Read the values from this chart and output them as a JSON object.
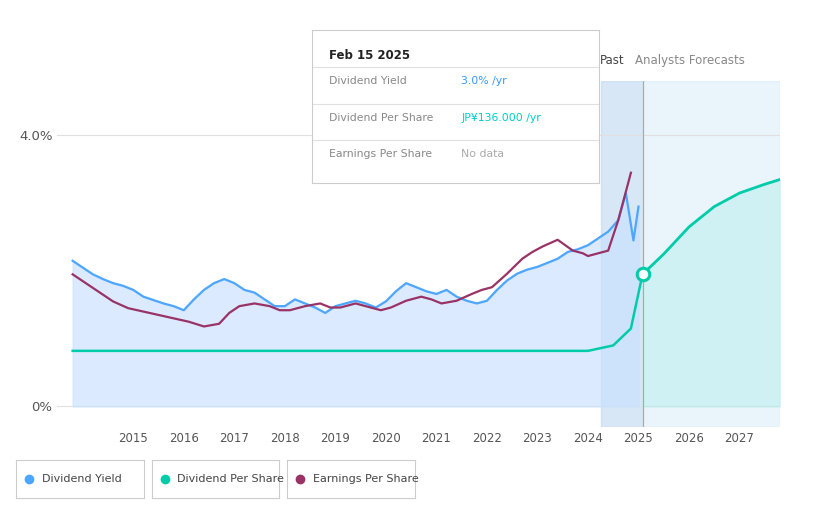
{
  "x_min": 2013.5,
  "x_max": 2027.8,
  "y_min": -0.3,
  "y_max": 4.8,
  "y_ticks": [
    0.0,
    4.0
  ],
  "y_tick_labels": [
    "0%",
    "4.0%"
  ],
  "x_ticks": [
    2015,
    2016,
    2017,
    2018,
    2019,
    2020,
    2021,
    2022,
    2023,
    2024,
    2025,
    2026,
    2027
  ],
  "past_label": "Past",
  "forecast_label": "Analysts Forecasts",
  "past_cutoff": 2025.08,
  "shaded_region_start": 2024.25,
  "bg_color": "#ffffff",
  "tooltip": {
    "date": "Feb 15 2025",
    "div_yield": "3.0%",
    "div_yield_color": "#3399ff",
    "div_per_share": "JP¥136.000",
    "div_per_share_color": "#00cccc",
    "eps": "No data",
    "eps_color": "#aaaaaa"
  },
  "dividend_yield": {
    "color": "#4da6ff",
    "fill_color": "#c8e0ff",
    "x": [
      2013.8,
      2014.0,
      2014.2,
      2014.4,
      2014.6,
      2014.8,
      2015.0,
      2015.2,
      2015.4,
      2015.6,
      2015.8,
      2016.0,
      2016.2,
      2016.4,
      2016.6,
      2016.8,
      2017.0,
      2017.2,
      2017.4,
      2017.6,
      2017.8,
      2018.0,
      2018.2,
      2018.4,
      2018.6,
      2018.8,
      2019.0,
      2019.2,
      2019.4,
      2019.6,
      2019.8,
      2020.0,
      2020.2,
      2020.4,
      2020.6,
      2020.8,
      2021.0,
      2021.2,
      2021.4,
      2021.6,
      2021.8,
      2022.0,
      2022.2,
      2022.4,
      2022.6,
      2022.8,
      2023.0,
      2023.2,
      2023.4,
      2023.6,
      2023.8,
      2024.0,
      2024.2,
      2024.4,
      2024.6,
      2024.75,
      2024.9,
      2025.0
    ],
    "y": [
      2.15,
      2.05,
      1.95,
      1.88,
      1.82,
      1.78,
      1.72,
      1.62,
      1.57,
      1.52,
      1.48,
      1.42,
      1.58,
      1.72,
      1.82,
      1.88,
      1.82,
      1.72,
      1.68,
      1.58,
      1.48,
      1.48,
      1.58,
      1.52,
      1.46,
      1.38,
      1.48,
      1.52,
      1.56,
      1.52,
      1.46,
      1.55,
      1.7,
      1.82,
      1.76,
      1.7,
      1.66,
      1.72,
      1.62,
      1.56,
      1.52,
      1.56,
      1.72,
      1.86,
      1.96,
      2.02,
      2.06,
      2.12,
      2.18,
      2.28,
      2.32,
      2.38,
      2.48,
      2.58,
      2.75,
      3.15,
      2.45,
      2.95
    ]
  },
  "dividend_per_share": {
    "color": "#00ccaa",
    "x_hist": [
      2013.8,
      2014.0,
      2015.0,
      2016.0,
      2017.0,
      2018.0,
      2019.0,
      2020.0,
      2021.0,
      2022.0,
      2023.0,
      2024.0,
      2024.5,
      2024.85,
      2025.08
    ],
    "y_hist": [
      0.82,
      0.82,
      0.82,
      0.82,
      0.82,
      0.82,
      0.82,
      0.82,
      0.82,
      0.82,
      0.82,
      0.82,
      0.9,
      1.15,
      1.95
    ],
    "x_fore": [
      2025.08,
      2025.5,
      2026.0,
      2026.5,
      2027.0,
      2027.5,
      2027.8
    ],
    "y_fore": [
      1.95,
      2.25,
      2.65,
      2.95,
      3.15,
      3.28,
      3.35
    ]
  },
  "earnings_per_share": {
    "color": "#993366",
    "x": [
      2013.8,
      2014.0,
      2014.3,
      2014.6,
      2014.9,
      2015.2,
      2015.5,
      2015.8,
      2016.1,
      2016.4,
      2016.7,
      2016.9,
      2017.1,
      2017.4,
      2017.7,
      2017.9,
      2018.1,
      2018.4,
      2018.7,
      2018.9,
      2019.1,
      2019.4,
      2019.7,
      2019.9,
      2020.1,
      2020.4,
      2020.7,
      2020.9,
      2021.1,
      2021.4,
      2021.7,
      2021.9,
      2022.1,
      2022.4,
      2022.7,
      2022.9,
      2023.1,
      2023.4,
      2023.7,
      2023.9,
      2024.0,
      2024.2,
      2024.4,
      2024.6,
      2024.85
    ],
    "y": [
      1.95,
      1.85,
      1.7,
      1.55,
      1.45,
      1.4,
      1.35,
      1.3,
      1.25,
      1.18,
      1.22,
      1.38,
      1.48,
      1.52,
      1.48,
      1.42,
      1.42,
      1.48,
      1.52,
      1.46,
      1.46,
      1.52,
      1.46,
      1.42,
      1.46,
      1.56,
      1.62,
      1.58,
      1.52,
      1.56,
      1.66,
      1.72,
      1.76,
      1.96,
      2.18,
      2.28,
      2.36,
      2.46,
      2.3,
      2.26,
      2.22,
      2.26,
      2.3,
      2.75,
      3.45
    ]
  },
  "legend_items": [
    {
      "label": "Dividend Yield",
      "color": "#4da6ff"
    },
    {
      "label": "Dividend Per Share",
      "color": "#00ccaa"
    },
    {
      "label": "Earnings Per Share",
      "color": "#993366"
    }
  ]
}
